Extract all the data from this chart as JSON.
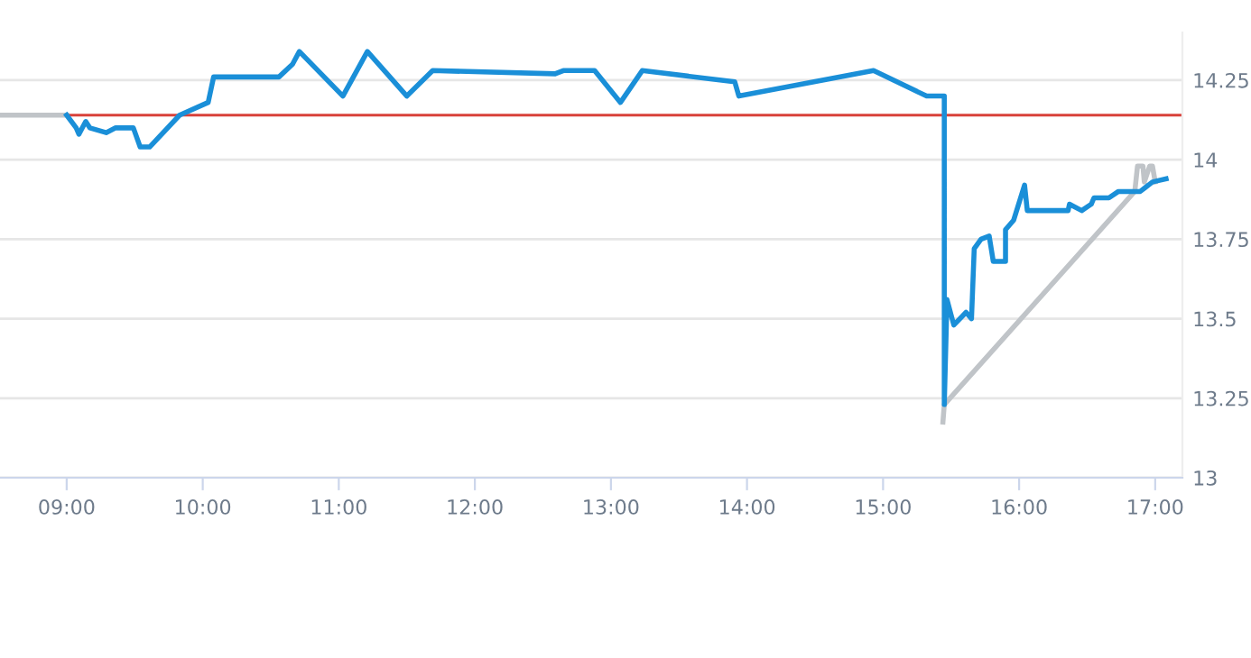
{
  "chart_data": {
    "type": "line",
    "xlim": [
      8.51,
      17.2
    ],
    "xticks": [
      {
        "value": 9,
        "label": "09:00"
      },
      {
        "value": 10,
        "label": "10:00"
      },
      {
        "value": 11,
        "label": "11:00"
      },
      {
        "value": 12,
        "label": "12:00"
      },
      {
        "value": 13,
        "label": "13:00"
      },
      {
        "value": 14,
        "label": "14:00"
      },
      {
        "value": 15,
        "label": "15:00"
      },
      {
        "value": 16,
        "label": "16:00"
      },
      {
        "value": 17,
        "label": "17:00"
      }
    ],
    "ylim": [
      13,
      14.4
    ],
    "yticks": [
      13,
      13.25,
      13.5,
      13.75,
      14,
      14.25
    ],
    "grid": "y",
    "marker": "none",
    "line_style": "solid",
    "ref_lines": [
      {
        "axis": "y",
        "value": 14.14,
        "color": "#d9413a"
      }
    ],
    "series": [
      {
        "color": "#c0c4c8",
        "x": [
          8.51,
          9.0,
          12.0,
          15.44,
          15.45,
          16.85,
          16.87,
          16.91,
          16.92,
          16.96,
          16.98,
          17.0
        ],
        "values": [
          14.14,
          14.14,
          null,
          13.175,
          13.23,
          13.9,
          13.98,
          13.98,
          13.93,
          13.98,
          13.98,
          13.93
        ]
      },
      {
        "color": "#1a8fd8",
        "x": [
          9.0,
          9.07,
          9.09,
          9.14,
          9.17,
          9.29,
          9.36,
          9.49,
          9.54,
          9.61,
          9.83,
          10.04,
          10.08,
          10.56,
          10.66,
          10.71,
          11.03,
          11.21,
          11.5,
          11.69,
          12.59,
          12.65,
          12.88,
          13.07,
          13.23,
          13.91,
          13.94,
          14.93,
          15.32,
          15.45,
          15.45,
          15.47,
          15.52,
          15.61,
          15.65,
          15.67,
          15.72,
          15.78,
          15.81,
          15.9,
          15.9,
          15.96,
          16.04,
          16.06,
          16.36,
          16.37,
          16.46,
          16.53,
          16.55,
          16.66,
          16.73,
          16.89,
          16.98,
          17.08
        ],
        "values": [
          14.14,
          14.1,
          14.08,
          14.12,
          14.1,
          14.085,
          14.1,
          14.1,
          14.04,
          14.04,
          14.14,
          14.18,
          14.26,
          14.26,
          14.3,
          14.34,
          14.2,
          14.34,
          14.2,
          14.28,
          14.27,
          14.28,
          14.28,
          14.18,
          14.28,
          14.245,
          14.2,
          14.28,
          14.2,
          14.2,
          13.23,
          13.56,
          13.48,
          13.52,
          13.5,
          13.72,
          13.75,
          13.76,
          13.68,
          13.68,
          13.78,
          13.81,
          13.92,
          13.84,
          13.84,
          13.86,
          13.84,
          13.86,
          13.88,
          13.88,
          13.9,
          13.9,
          13.93,
          13.94
        ]
      }
    ]
  }
}
